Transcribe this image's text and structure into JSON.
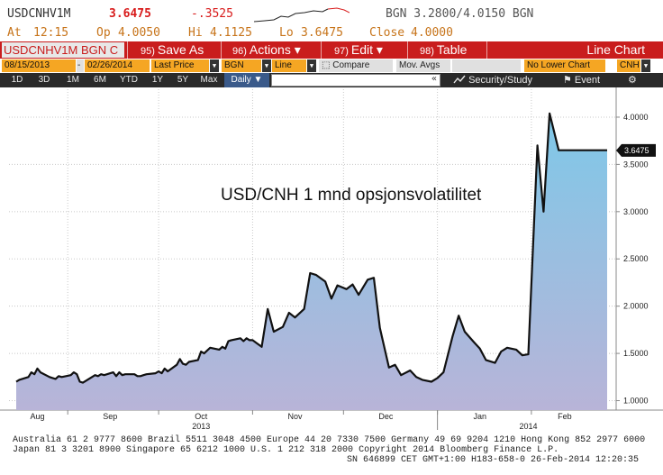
{
  "quote": {
    "ticker": "USDCNHV1M",
    "last": "3.6475",
    "change": "-.3525",
    "bidask": "BGN  3.2800/4.0150  BGN",
    "at_label": "At",
    "at_time": "12:15",
    "open_label": "Op",
    "open": "4.0050",
    "hi_label": "Hi",
    "hi": "4.1125",
    "lo_label": "Lo",
    "lo": "3.6475",
    "close_label": "Close",
    "close": "4.0000"
  },
  "command_bar": {
    "security": "USDCNHV1M BGN C",
    "buttons": [
      {
        "num": "95)",
        "label": "Save As"
      },
      {
        "num": "96)",
        "label": "Actions ▾"
      },
      {
        "num": "97)",
        "label": "Edit ▾"
      },
      {
        "num": "98)",
        "label": "Table"
      }
    ],
    "chart_type": "Line Chart"
  },
  "settings": {
    "start_date": "08/15/2013",
    "dash": "-",
    "end_date": "02/26/2014",
    "field": "Last Price",
    "source": "BGN",
    "style": "Line",
    "compare": "Compare",
    "mov_avgs": "Mov. Avgs",
    "lower_chart": "No Lower Chart",
    "currency": "CNH"
  },
  "periods": {
    "items": [
      "1D",
      "3D",
      "1M",
      "6M",
      "YTD",
      "1Y",
      "5Y",
      "Max"
    ],
    "frequency": "Daily ▼",
    "input_arrow": "«",
    "security_study": "Security/Study",
    "event": "Event",
    "settings_icon": "gear-icon"
  },
  "chart_data": {
    "type": "area",
    "title": "USD/CNH 1 mnd opsjonsvolatilitet",
    "x": [
      "2013-08-15",
      "2013-08-16",
      "2013-08-19",
      "2013-08-20",
      "2013-08-21",
      "2013-08-22",
      "2013-08-23",
      "2013-08-26",
      "2013-08-27",
      "2013-08-28",
      "2013-08-29",
      "2013-08-30",
      "2013-09-02",
      "2013-09-03",
      "2013-09-04",
      "2013-09-05",
      "2013-09-06",
      "2013-09-09",
      "2013-09-10",
      "2013-09-11",
      "2013-09-12",
      "2013-09-13",
      "2013-09-16",
      "2013-09-17",
      "2013-09-18",
      "2013-09-19",
      "2013-09-20",
      "2013-09-23",
      "2013-09-24",
      "2013-09-25",
      "2013-09-26",
      "2013-09-27",
      "2013-09-30",
      "2013-10-01",
      "2013-10-02",
      "2013-10-03",
      "2013-10-04",
      "2013-10-07",
      "2013-10-08",
      "2013-10-09",
      "2013-10-10",
      "2013-10-11",
      "2013-10-14",
      "2013-10-15",
      "2013-10-16",
      "2013-10-17",
      "2013-10-18",
      "2013-10-21",
      "2013-10-22",
      "2013-10-23",
      "2013-10-24",
      "2013-10-25",
      "2013-10-28",
      "2013-10-29",
      "2013-10-30",
      "2013-10-31",
      "2013-11-01",
      "2013-11-04",
      "2013-11-06",
      "2013-11-08",
      "2013-11-11",
      "2013-11-13",
      "2013-11-15",
      "2013-11-18",
      "2013-11-20",
      "2013-11-22",
      "2013-11-25",
      "2013-11-27",
      "2013-11-29",
      "2013-12-02",
      "2013-12-04",
      "2013-12-06",
      "2013-12-09",
      "2013-12-11",
      "2013-12-13",
      "2013-12-16",
      "2013-12-18",
      "2013-12-20",
      "2013-12-23",
      "2013-12-25",
      "2013-12-27",
      "2013-12-30",
      "2014-01-01",
      "2014-01-03",
      "2014-01-06",
      "2014-01-08",
      "2014-01-10",
      "2014-01-13",
      "2014-01-15",
      "2014-01-17",
      "2014-01-20",
      "2014-01-22",
      "2014-01-24",
      "2014-01-27",
      "2014-01-29",
      "2014-01-31",
      "2014-02-03",
      "2014-02-05",
      "2014-02-07",
      "2014-02-10",
      "2014-02-12",
      "2014-02-14",
      "2014-02-17",
      "2014-02-19",
      "2014-02-20",
      "2014-02-21",
      "2014-02-24",
      "2014-02-25",
      "2014-02-26"
    ],
    "series": [
      {
        "values": [
          1.2,
          1.22,
          1.25,
          1.3,
          1.28,
          1.34,
          1.3,
          1.25,
          1.24,
          1.23,
          1.26,
          1.25,
          1.27,
          1.3,
          1.28,
          1.2,
          1.19,
          1.25,
          1.27,
          1.26,
          1.28,
          1.27,
          1.3,
          1.26,
          1.3,
          1.27,
          1.28,
          1.28,
          1.26,
          1.26,
          1.27,
          1.28,
          1.29,
          1.31,
          1.29,
          1.34,
          1.31,
          1.38,
          1.44,
          1.39,
          1.38,
          1.41,
          1.43,
          1.52,
          1.5,
          1.53,
          1.56,
          1.54,
          1.57,
          1.55,
          1.63,
          1.64,
          1.66,
          1.63,
          1.66,
          1.64,
          1.64,
          1.57,
          1.97,
          1.73,
          1.78,
          1.93,
          1.88,
          1.97,
          2.35,
          2.33,
          2.26,
          2.08,
          2.22,
          2.18,
          2.23,
          2.12,
          2.28,
          2.3,
          1.77,
          1.35,
          1.38,
          1.27,
          1.32,
          1.25,
          1.22,
          1.2,
          1.24,
          1.3,
          1.68,
          1.9,
          1.73,
          1.62,
          1.55,
          1.43,
          1.4,
          1.52,
          1.56,
          1.54,
          1.48,
          1.49,
          3.7,
          3.0,
          4.04,
          3.65,
          3.65,
          3.65,
          3.65,
          3.65,
          3.65,
          3.65,
          3.65,
          3.65,
          3.65
        ]
      }
    ],
    "x_month_labels": [
      "Aug",
      "Sep",
      "Oct",
      "Nov",
      "Dec",
      "Jan",
      "Feb"
    ],
    "x_year_labels": [
      "2013",
      "2014"
    ],
    "y_ticks": [
      "1.0000",
      "1.5000",
      "2.0000",
      "2.5000",
      "3.0000",
      "3.5000",
      "4.0000"
    ],
    "ylim": [
      0.9,
      4.2
    ],
    "last_value_label": "3.6475",
    "grid": true,
    "colors": {
      "line": "#111111",
      "fill_top": "#7ec8e8",
      "fill_bottom": "#b8b4d8",
      "last_label_bg": "#111111"
    }
  },
  "footer": {
    "line1": "Australia 61 2 9777 8600 Brazil 5511 3048 4500 Europe 44 20 7330 7500 Germany 49 69 9204 1210 Hong Kong 852 2977 6000",
    "line2": "Japan 81 3 3201 8900        Singapore 65 6212 1000        U.S. 1 212 318 2000        Copyright 2014 Bloomberg Finance L.P.",
    "line3": "SN 646899 CET  GMT+1:00 H183-658-0 26-Feb-2014 12:20:35"
  }
}
